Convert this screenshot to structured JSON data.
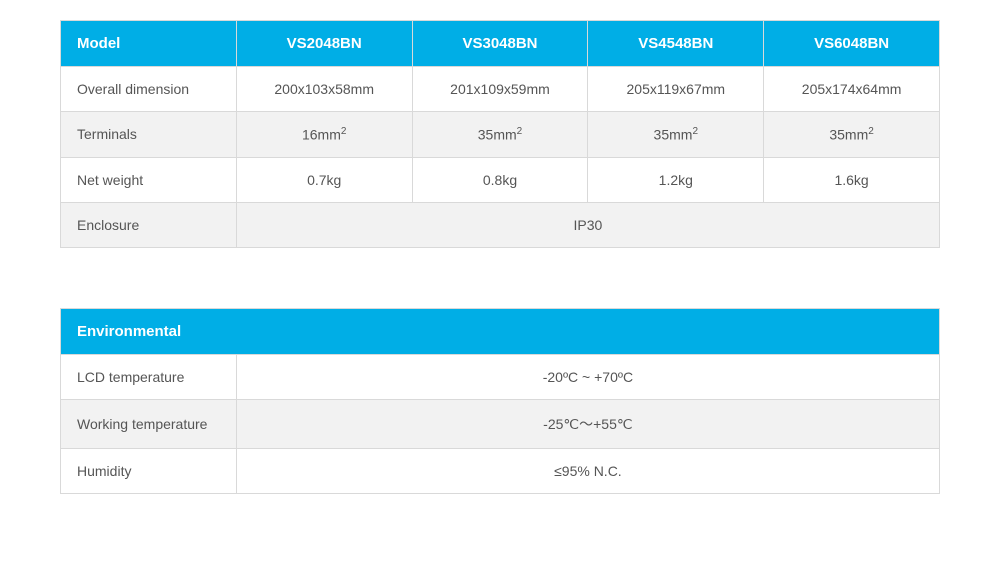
{
  "colors": {
    "header_bg": "#00aee6",
    "header_text": "#ffffff",
    "border": "#d9d9d9",
    "cell_text": "#555555",
    "alt_row_bg": "#f2f2f2",
    "background": "#ffffff"
  },
  "table1": {
    "type": "table",
    "header_row": {
      "label": "Model",
      "cols": [
        "VS2048BN",
        "VS3048BN",
        "VS4548BN",
        "VS6048BN"
      ]
    },
    "rows": [
      {
        "label": "Overall dimension",
        "cells": [
          "200x103x58mm",
          "201x109x59mm",
          "205x119x67mm",
          "205x174x64mm"
        ],
        "alt": false
      },
      {
        "label": "Terminals",
        "cells_html": [
          "16mm<sup>2</sup>",
          "35mm<sup>2</sup>",
          "35mm<sup>2</sup>",
          "35mm<sup>2</sup>"
        ],
        "alt": true
      },
      {
        "label": "Net weight",
        "cells": [
          "0.7kg",
          "0.8kg",
          "1.2kg",
          "1.6kg"
        ],
        "alt": false
      },
      {
        "label": "Enclosure",
        "span_value": "IP30",
        "alt": true
      }
    ]
  },
  "table2": {
    "type": "table",
    "title": "Environmental",
    "rows": [
      {
        "label": "LCD temperature",
        "value": "-20ºC ~  +70ºC",
        "alt": false
      },
      {
        "label": "Working temperature",
        "value": "-25℃～+55℃",
        "alt": true
      },
      {
        "label": "Humidity",
        "value": "≤95% N.C.",
        "alt": false
      }
    ]
  }
}
